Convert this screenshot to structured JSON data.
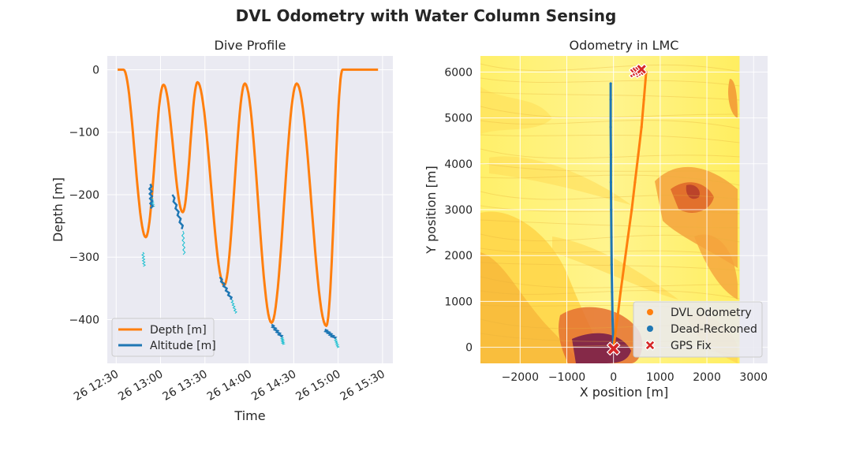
{
  "figure": {
    "title": "DVL Odometry with Water Column Sensing"
  },
  "chart_data": [
    {
      "type": "line",
      "title": "Dive Profile",
      "xlabel": "Time",
      "ylabel": "Depth [m]",
      "xlim": [
        "26 12:24",
        "26 15:37"
      ],
      "ylim": [
        -470,
        22
      ],
      "x_ticks": [
        "26 12:30",
        "26 13:00",
        "26 13:30",
        "26 14:00",
        "26 14:30",
        "26 15:00",
        "26 15:30"
      ],
      "y_ticks": [
        0,
        -100,
        -200,
        -300,
        -400
      ],
      "grid": true,
      "legend": "lower-left",
      "series": [
        {
          "name": "Depth [m]",
          "color": "#ff7f0e",
          "x": [
            "26 12:31",
            "26 12:35",
            "26 12:50",
            "26 13:02",
            "26 13:15",
            "26 13:25",
            "26 13:43",
            "26 13:57",
            "26 14:15",
            "26 14:32",
            "26 14:52",
            "26 15:03",
            "26 15:27"
          ],
          "y": [
            0,
            0,
            -268,
            -24,
            -228,
            -20,
            -345,
            -22,
            -405,
            -22,
            -410,
            0,
            0
          ]
        },
        {
          "name": "Altitude [m]",
          "color": "#1f77b4",
          "segments": [
            {
              "x": [
                "26 12:53",
                "26 12:54"
              ],
              "y": [
                -183,
                -222
              ]
            },
            {
              "x": [
                "26 13:08",
                "26 13:15"
              ],
              "y": [
                -200,
                -255
              ]
            },
            {
              "x": [
                "26 13:40",
                "26 13:48"
              ],
              "y": [
                -332,
                -368
              ]
            },
            {
              "x": [
                "26 14:15",
                "26 14:22"
              ],
              "y": [
                -408,
                -428
              ]
            },
            {
              "x": [
                "26 14:51",
                "26 14:58"
              ],
              "y": [
                -416,
                -430
              ]
            }
          ]
        },
        {
          "name": "",
          "color": "#17becf",
          "segments": [
            {
              "x": [
                "26 12:48",
                "26 12:49"
              ],
              "y": [
                -292,
                -315
              ]
            },
            {
              "x": [
                "26 12:54",
                "26 12:55"
              ],
              "y": [
                -206,
                -220
              ]
            },
            {
              "x": [
                "26 13:15",
                "26 13:16"
              ],
              "y": [
                -258,
                -296
              ]
            },
            {
              "x": [
                "26 13:48",
                "26 13:51"
              ],
              "y": [
                -368,
                -390
              ]
            },
            {
              "x": [
                "26 14:22",
                "26 14:23"
              ],
              "y": [
                -428,
                -440
              ]
            },
            {
              "x": [
                "26 14:58",
                "26 15:00"
              ],
              "y": [
                -430,
                -445
              ]
            }
          ]
        }
      ]
    },
    {
      "type": "scatter",
      "title": "Odometry in LMC",
      "xlabel": "X position [m]",
      "ylabel": "Y position [m]",
      "xlim": [
        -2850,
        3300
      ],
      "ylim": [
        -350,
        6350
      ],
      "x_ticks": [
        -2000,
        -1000,
        0,
        1000,
        2000,
        3000
      ],
      "y_ticks": [
        0,
        1000,
        2000,
        3000,
        4000,
        5000,
        6000
      ],
      "grid": true,
      "legend": "lower-right",
      "background": "bathymetry heatmap",
      "series": [
        {
          "name": "DVL Odometry",
          "color": "#ff7f0e",
          "x": [
            0,
            80,
            150,
            230,
            310,
            390,
            460,
            530,
            600,
            650,
            700
          ],
          "y": [
            0,
            600,
            1200,
            1800,
            2400,
            3000,
            3600,
            4200,
            4800,
            5400,
            6000
          ]
        },
        {
          "name": "Dead-Reckoned",
          "color": "#1f77b4",
          "x": [
            0,
            -20,
            -30,
            -40,
            -45,
            -50,
            -55,
            -55,
            -60,
            -60,
            -60
          ],
          "y": [
            0,
            600,
            1200,
            1800,
            2400,
            3000,
            3600,
            4200,
            4800,
            5400,
            5750
          ]
        },
        {
          "name": "GPS Fix",
          "color": "#d62728",
          "marker": "X",
          "x": [
            0,
            450,
            500,
            560,
            600
          ],
          "y": [
            -30,
            5980,
            6010,
            6030,
            6060
          ]
        }
      ]
    }
  ]
}
